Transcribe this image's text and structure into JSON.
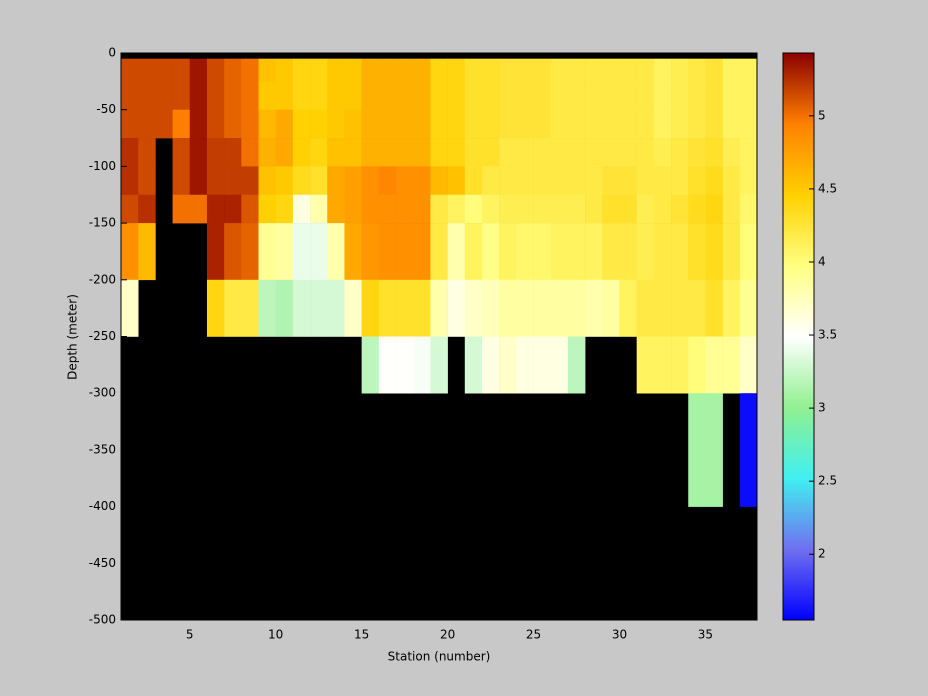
{
  "chart_data": {
    "type": "heatmap",
    "x_label": "Station (number)",
    "y_label": "Depth (meter)",
    "x": [
      1,
      2,
      3,
      4,
      5,
      6,
      7,
      8,
      9,
      10,
      11,
      12,
      13,
      14,
      15,
      16,
      17,
      18,
      19,
      20,
      21,
      22,
      23,
      24,
      25,
      26,
      27,
      28,
      29,
      30,
      31,
      32,
      33,
      34,
      35,
      36,
      37,
      38
    ],
    "y": [
      0,
      -5,
      -25,
      -50,
      -75,
      -100,
      -125,
      -150,
      -200,
      -250,
      -300,
      -400,
      -500
    ],
    "xlim": [
      1,
      38
    ],
    "ylim": [
      -500,
      0
    ],
    "xticks": [
      5,
      10,
      15,
      20,
      25,
      30,
      35
    ],
    "yticks": [
      0,
      -50,
      -100,
      -150,
      -200,
      -250,
      -300,
      -350,
      -400,
      -450,
      -500
    ],
    "clim": [
      1.55,
      5.43
    ],
    "cticks": [
      2,
      2.5,
      3,
      3.5,
      4,
      4.5,
      5
    ],
    "colormap": [
      "#0000ff",
      "#7070f0",
      "#40f0f0",
      "#90f090",
      "#ffffff",
      "#ffff80",
      "#ffd000",
      "#ff8000",
      "#8b0000"
    ],
    "nan_color": "#000000",
    "values": [
      [
        null,
        5.15,
        5.15,
        5.15,
        5.25,
        5.25,
        5.15,
        4.85,
        3.7,
        null,
        null,
        null
      ],
      [
        null,
        5.15,
        5.15,
        5.15,
        5.15,
        5.15,
        5.25,
        4.6,
        null,
        null,
        null,
        null
      ],
      [
        null,
        5.15,
        5.15,
        5.15,
        null,
        null,
        null,
        null,
        null,
        null,
        null,
        null
      ],
      [
        null,
        5.15,
        5.15,
        4.95,
        5.15,
        5.15,
        5.0,
        null,
        null,
        null,
        null,
        null
      ],
      [
        null,
        5.35,
        5.35,
        5.35,
        5.35,
        5.35,
        5.0,
        null,
        null,
        null,
        null,
        null
      ],
      [
        null,
        5.15,
        5.15,
        5.15,
        5.2,
        5.2,
        5.3,
        5.3,
        4.4,
        null,
        null,
        null
      ],
      [
        null,
        5.05,
        5.05,
        5.05,
        5.2,
        5.2,
        5.3,
        5.1,
        4.2,
        null,
        null,
        null
      ],
      [
        null,
        5.0,
        5.0,
        5.0,
        5.0,
        5.2,
        5.1,
        5.05,
        4.2,
        null,
        null,
        null
      ],
      [
        null,
        4.55,
        4.5,
        4.6,
        4.65,
        4.55,
        4.45,
        3.9,
        3.2,
        null,
        null,
        null
      ],
      [
        null,
        4.5,
        4.5,
        4.7,
        4.7,
        4.5,
        4.4,
        3.85,
        3.15,
        null,
        null,
        null
      ],
      [
        null,
        4.4,
        4.4,
        4.45,
        4.45,
        4.35,
        3.6,
        3.4,
        3.3,
        null,
        null,
        null
      ],
      [
        null,
        4.4,
        4.4,
        4.45,
        4.4,
        4.3,
        3.8,
        3.4,
        3.3,
        null,
        null,
        null
      ],
      [
        null,
        4.5,
        4.5,
        4.5,
        4.55,
        4.7,
        4.7,
        3.8,
        3.3,
        null,
        null,
        null
      ],
      [
        null,
        4.5,
        4.5,
        4.55,
        4.55,
        4.75,
        4.75,
        4.7,
        3.7,
        null,
        null,
        null
      ],
      [
        null,
        4.65,
        4.65,
        4.65,
        4.65,
        4.85,
        4.85,
        4.8,
        4.4,
        3.2,
        null,
        null
      ],
      [
        null,
        4.65,
        4.65,
        4.65,
        4.65,
        4.9,
        4.85,
        4.85,
        4.3,
        3.5,
        null,
        null
      ],
      [
        null,
        4.65,
        4.65,
        4.65,
        4.65,
        4.85,
        4.85,
        4.85,
        4.3,
        3.5,
        null,
        null
      ],
      [
        null,
        4.65,
        4.65,
        4.65,
        4.65,
        4.85,
        4.85,
        4.85,
        4.3,
        3.45,
        null,
        null
      ],
      [
        null,
        4.4,
        4.4,
        4.4,
        4.4,
        4.6,
        4.2,
        4.2,
        3.8,
        3.3,
        null,
        null
      ],
      [
        null,
        4.4,
        4.4,
        4.4,
        4.4,
        4.55,
        4.1,
        3.8,
        3.6,
        null,
        null,
        null
      ],
      [
        null,
        4.3,
        4.3,
        4.3,
        4.3,
        4.3,
        4.0,
        4.1,
        3.7,
        3.3,
        null,
        null
      ],
      [
        null,
        4.3,
        4.3,
        4.3,
        4.3,
        4.2,
        4.1,
        3.95,
        3.75,
        3.6,
        null,
        null
      ],
      [
        null,
        4.25,
        4.25,
        4.25,
        4.2,
        4.2,
        4.15,
        4.1,
        3.85,
        3.7,
        null,
        null
      ],
      [
        null,
        4.25,
        4.25,
        4.25,
        4.2,
        4.2,
        4.15,
        4.05,
        3.85,
        3.6,
        null,
        null
      ],
      [
        null,
        4.25,
        4.25,
        4.25,
        4.2,
        4.2,
        4.15,
        4.05,
        3.85,
        3.6,
        null,
        null
      ],
      [
        null,
        4.2,
        4.2,
        4.2,
        4.2,
        4.2,
        4.15,
        4.1,
        3.85,
        3.6,
        null,
        null
      ],
      [
        null,
        4.2,
        4.2,
        4.2,
        4.2,
        4.2,
        4.15,
        4.1,
        3.85,
        3.2,
        null,
        null
      ],
      [
        null,
        4.2,
        4.2,
        4.2,
        4.2,
        4.2,
        4.2,
        4.1,
        3.8,
        null,
        null,
        null
      ],
      [
        null,
        4.2,
        4.2,
        4.2,
        4.2,
        4.25,
        4.3,
        4.2,
        3.85,
        null,
        null,
        null
      ],
      [
        null,
        4.2,
        4.2,
        4.2,
        4.2,
        4.25,
        4.3,
        4.2,
        4.1,
        null,
        null,
        null
      ],
      [
        null,
        4.2,
        4.2,
        4.2,
        4.2,
        4.2,
        4.15,
        4.15,
        4.2,
        4.1,
        null,
        null
      ],
      [
        null,
        4.1,
        4.1,
        4.1,
        4.15,
        4.2,
        4.2,
        4.2,
        4.2,
        4.1,
        null,
        null
      ],
      [
        null,
        4.15,
        4.15,
        4.15,
        4.2,
        4.2,
        4.25,
        4.2,
        4.2,
        4.1,
        null,
        null
      ],
      [
        null,
        4.2,
        4.2,
        4.2,
        4.25,
        4.3,
        4.35,
        4.3,
        4.2,
        4.0,
        3.1,
        null
      ],
      [
        null,
        4.25,
        4.25,
        4.25,
        4.3,
        4.35,
        4.4,
        4.35,
        4.3,
        3.9,
        3.1,
        null
      ],
      [
        null,
        4.1,
        4.1,
        4.1,
        4.15,
        4.2,
        4.2,
        4.2,
        4.1,
        3.9,
        null,
        null
      ],
      [
        null,
        4.1,
        4.1,
        4.1,
        4.1,
        4.1,
        4.05,
        4.0,
        3.9,
        3.7,
        1.6,
        null
      ]
    ]
  }
}
